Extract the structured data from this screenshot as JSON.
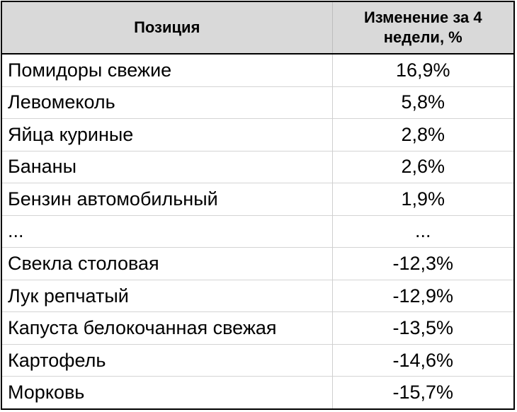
{
  "table": {
    "headers": [
      "Позиция",
      "Изменение за 4 недели, %"
    ],
    "rows": [
      {
        "item": "Помидоры свежие",
        "change": "16,9%"
      },
      {
        "item": "Левомеколь",
        "change": "5,8%"
      },
      {
        "item": "Яйца куриные",
        "change": "2,8%"
      },
      {
        "item": "Бананы",
        "change": "2,6%"
      },
      {
        "item": "Бензин автомобильный",
        "change": "1,9%"
      },
      {
        "item": "...",
        "change": "..."
      },
      {
        "item": "Свекла столовая",
        "change": "-12,3%"
      },
      {
        "item": "Лук репчатый",
        "change": "-12,9%"
      },
      {
        "item": "Капуста белокочанная свежая",
        "change": "-13,5%"
      },
      {
        "item": "Картофель",
        "change": "-14,6%"
      },
      {
        "item": "Морковь",
        "change": "-15,7%"
      }
    ]
  },
  "colors": {
    "header_bg": "#d9d9d9",
    "border": "#000000"
  }
}
